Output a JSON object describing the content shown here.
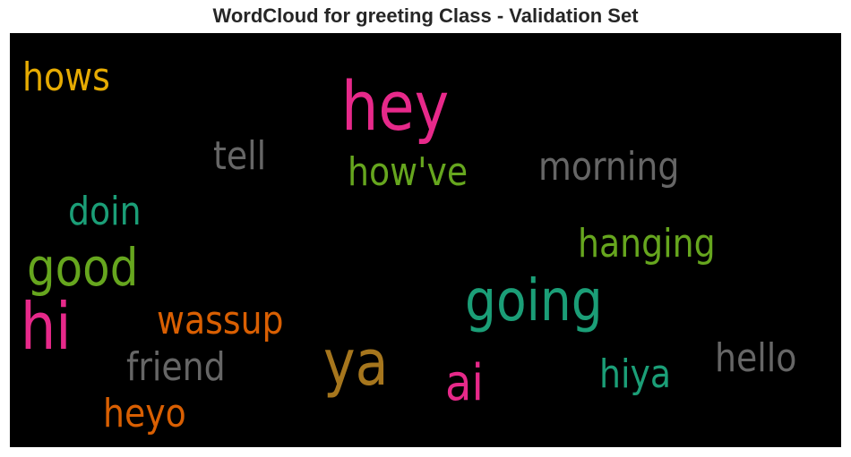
{
  "chart_data": {
    "type": "wordcloud",
    "title": "WordCloud for greeting Class - Validation Set",
    "background": "#000000",
    "colormap": "Dark2",
    "words": [
      {
        "text": "hey",
        "weight": 1.0,
        "color": "#e7298a"
      },
      {
        "text": "hi",
        "weight": 0.92,
        "color": "#e7298a"
      },
      {
        "text": "ya",
        "weight": 0.9,
        "color": "#a6761d"
      },
      {
        "text": "going",
        "weight": 0.84,
        "color": "#1b9e77"
      },
      {
        "text": "good",
        "weight": 0.78,
        "color": "#66a61e"
      },
      {
        "text": "ai",
        "weight": 0.65,
        "color": "#e7298a"
      },
      {
        "text": "hows",
        "weight": 0.6,
        "color": "#e6ab02"
      },
      {
        "text": "tell",
        "weight": 0.6,
        "color": "#666666"
      },
      {
        "text": "how've",
        "weight": 0.6,
        "color": "#66a61e"
      },
      {
        "text": "morning",
        "weight": 0.6,
        "color": "#666666"
      },
      {
        "text": "doin",
        "weight": 0.6,
        "color": "#1b9e77"
      },
      {
        "text": "hanging",
        "weight": 0.6,
        "color": "#66a61e"
      },
      {
        "text": "wassup",
        "weight": 0.6,
        "color": "#d95f02"
      },
      {
        "text": "friend",
        "weight": 0.6,
        "color": "#666666"
      },
      {
        "text": "hello",
        "weight": 0.6,
        "color": "#666666"
      },
      {
        "text": "hiya",
        "weight": 0.6,
        "color": "#1b9e77"
      },
      {
        "text": "heyo",
        "weight": 0.6,
        "color": "#d95f02"
      }
    ]
  }
}
